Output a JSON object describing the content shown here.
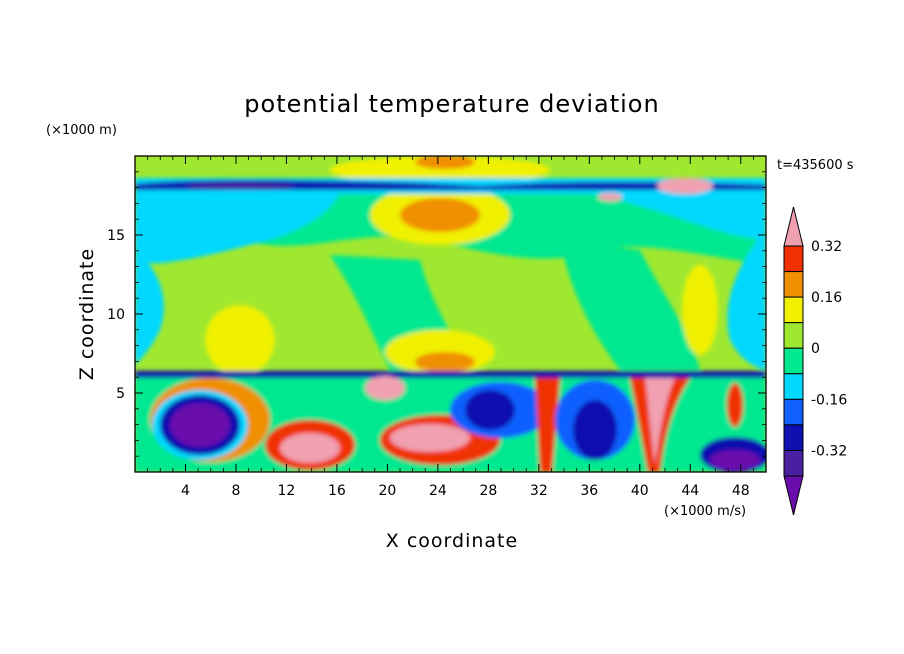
{
  "chart_data": {
    "type": "heatmap",
    "title": "potential temperature deviation",
    "xlabel": "X coordinate",
    "ylabel": "Z coordinate",
    "x_unit": "(×1000 m/s)",
    "y_unit": "(×1000 m)",
    "time_label": "t=435600 s",
    "xlim": [
      0,
      50
    ],
    "ylim": [
      0,
      20
    ],
    "x_ticks": [
      4,
      8,
      12,
      16,
      20,
      24,
      28,
      32,
      36,
      40,
      44,
      48
    ],
    "y_ticks": [
      5,
      10,
      15
    ],
    "colorbar": {
      "colors": [
        "#6a0dad",
        "#4a1fa0",
        "#1010b0",
        "#1060ff",
        "#00d8ff",
        "#00e890",
        "#a0e830",
        "#f0f000",
        "#f09000",
        "#f03000",
        "#f0a0b0"
      ],
      "labels": [
        "-0.32",
        "-0.16",
        "0",
        "0.16",
        "0.32"
      ],
      "label_positions": [
        -0.32,
        -0.16,
        0,
        0.16,
        0.32
      ],
      "min": -0.4,
      "max": 0.4,
      "step": 0.08
    }
  }
}
